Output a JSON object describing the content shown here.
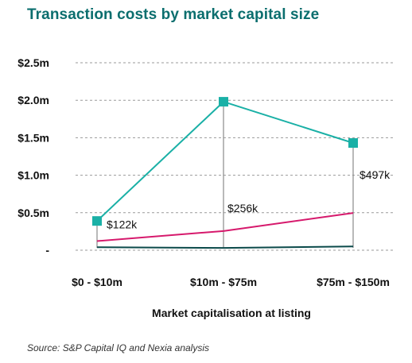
{
  "chart_data": {
    "type": "line",
    "title": "Transaction costs by market capital size",
    "xlabel": "Market capitalisation at listing",
    "ylabel": "",
    "categories": [
      "$0 - $10m",
      "$10m - $75m",
      "$75m - $150m"
    ],
    "yticks": [
      {
        "value": 0,
        "label": "-"
      },
      {
        "value": 0.5,
        "label": "$0.5m"
      },
      {
        "value": 1.0,
        "label": "$1.0m"
      },
      {
        "value": 1.5,
        "label": "$1.5m"
      },
      {
        "value": 2.0,
        "label": "$2.0m"
      },
      {
        "value": 2.5,
        "label": "$2.5m"
      }
    ],
    "ylim": [
      0,
      2.5
    ],
    "grid": true,
    "legend": "none",
    "series": [
      {
        "values": [
          0.39,
          1.98,
          1.43
        ],
        "color": "#1ab0a6",
        "marker": "square"
      },
      {
        "values": [
          0.122,
          0.256,
          0.497
        ],
        "color": "#d6196c",
        "data_labels": [
          "$122k",
          "$256k",
          "$497k"
        ]
      },
      {
        "values": [
          0.04,
          0.03,
          0.05
        ],
        "color": "#0b4a4a"
      }
    ]
  },
  "source": "Source: S&P Capital IQ and Nexia analysis"
}
